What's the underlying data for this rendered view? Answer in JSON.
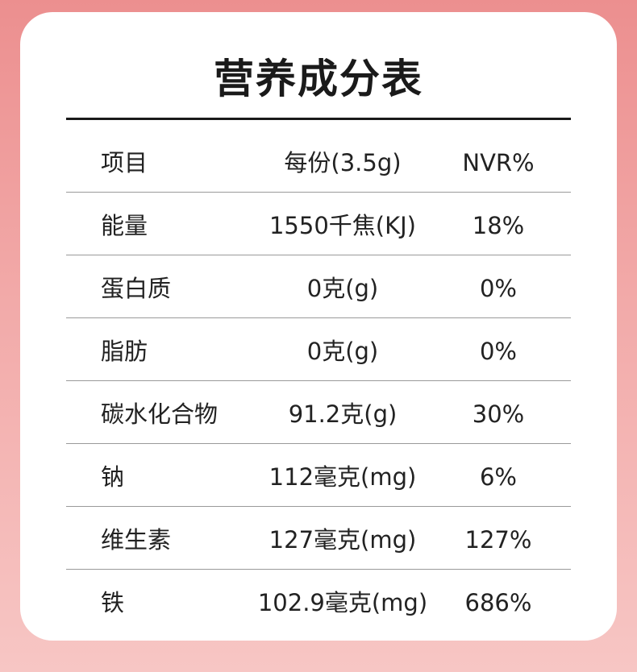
{
  "title": "营养成分表",
  "table": {
    "header": [
      "项目",
      "每份(3.5g)",
      "NVR%"
    ],
    "rows": [
      [
        "能量",
        "1550千焦(KJ)",
        "18%"
      ],
      [
        "蛋白质",
        "0克(g)",
        "0%"
      ],
      [
        "脂肪",
        "0克(g)",
        "0%"
      ],
      [
        "碳水化合物",
        "91.2克(g)",
        "30%"
      ],
      [
        "钠",
        "112毫克(mg)",
        "6%"
      ],
      [
        "维生素",
        "127毫克(mg)",
        "127%"
      ],
      [
        "铁",
        "102.9毫克(mg)",
        "686%"
      ]
    ]
  }
}
